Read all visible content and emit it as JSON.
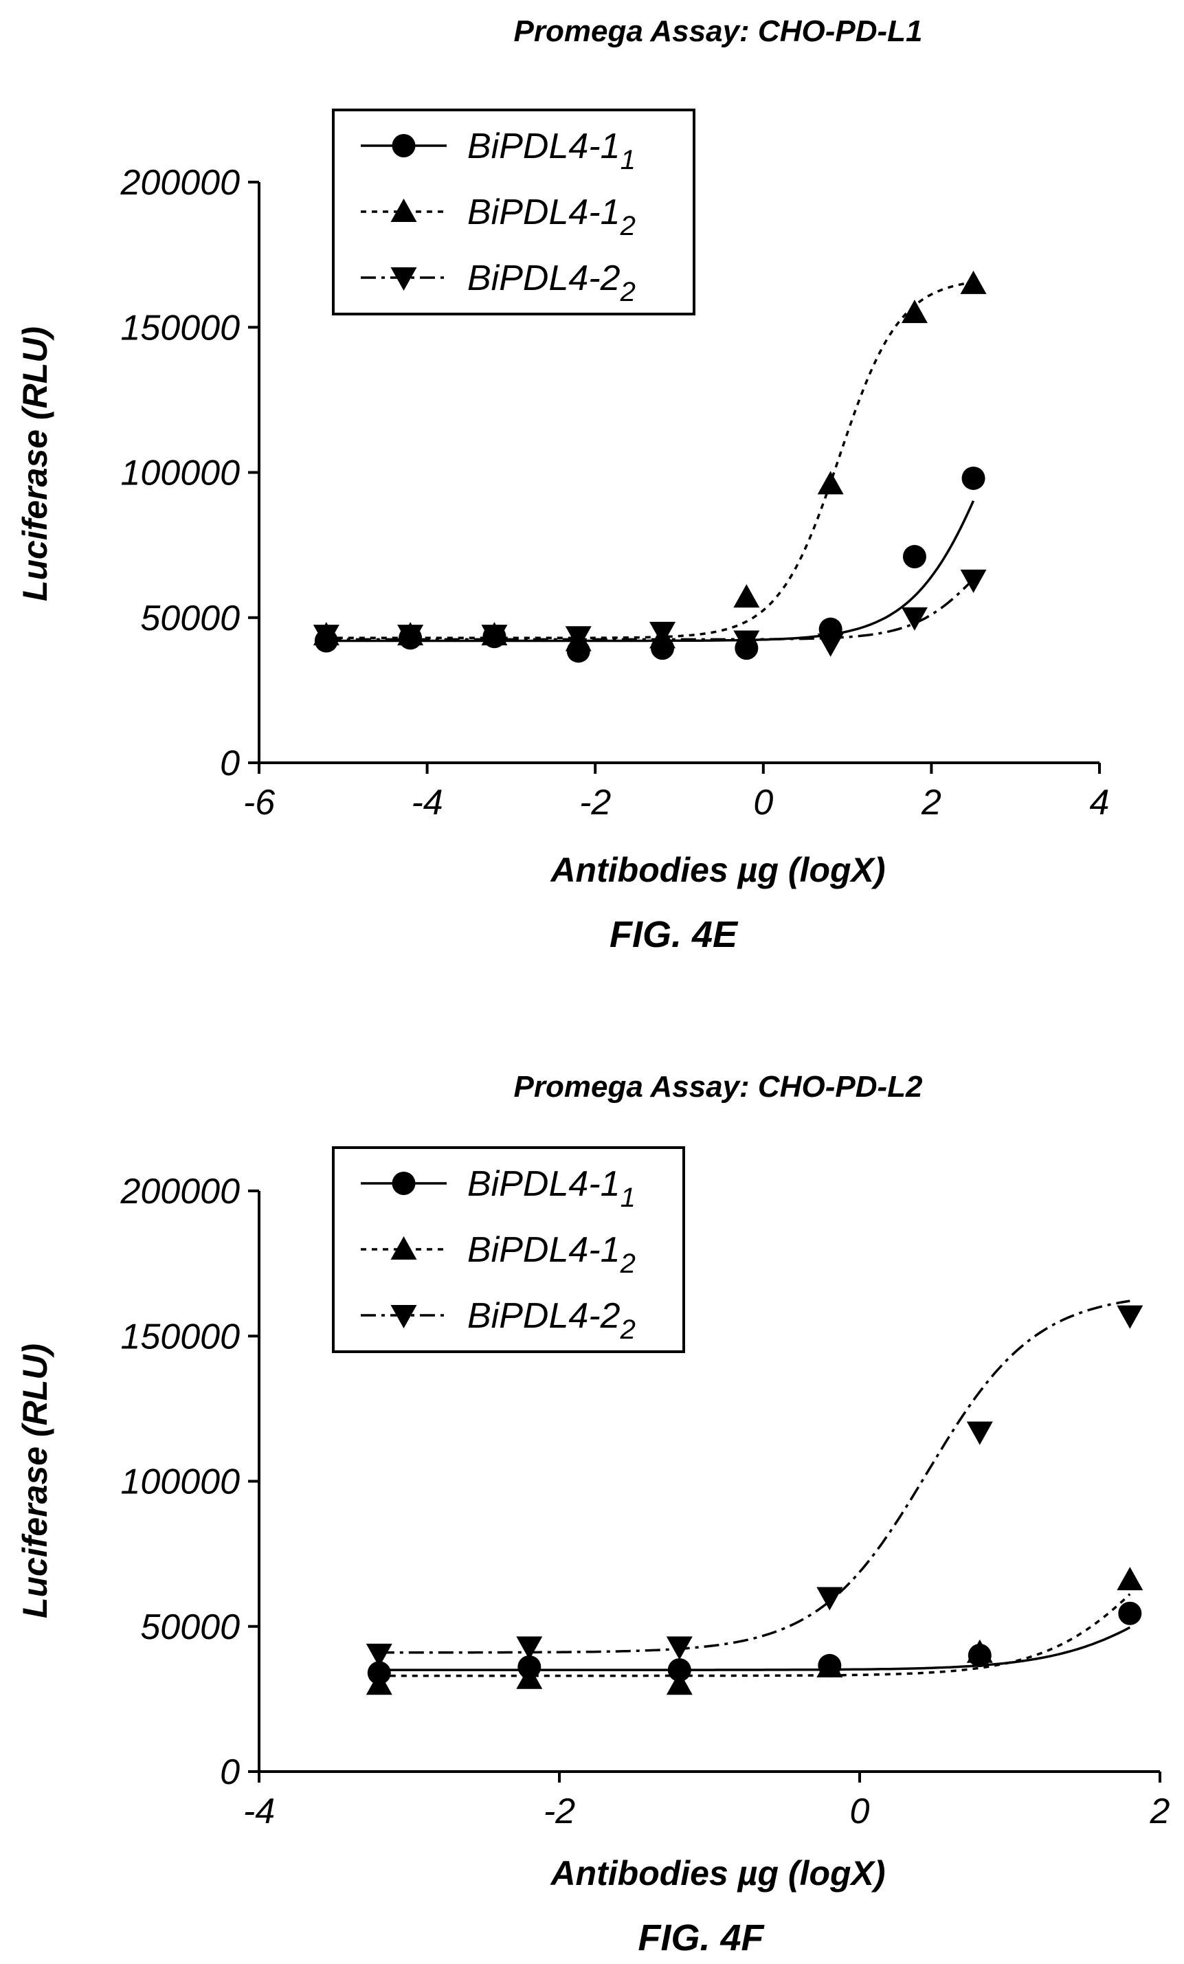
{
  "chart_data": [
    {
      "type": "scatter",
      "title": "Promega Assay: CHO-PD-L1",
      "xlabel": "Antibodies µg (logX)",
      "ylabel": "Luciferase (RLU)",
      "caption": "FIG. 4E",
      "xlim": [
        -6,
        4
      ],
      "ylim": [
        0,
        200000
      ],
      "xticks": [
        -6,
        -4,
        -2,
        0,
        2,
        4
      ],
      "xtick_labels": [
        "-6",
        "-4",
        "-2",
        "0",
        "2",
        "4"
      ],
      "yticks": [
        0,
        50000,
        100000,
        150000,
        200000
      ],
      "ytick_labels": [
        "0",
        "50000",
        "100000",
        "150000",
        "200000"
      ],
      "legend_position": "top-left",
      "series": [
        {
          "name": "BiPDL4-1",
          "sub": "1",
          "marker": "circle",
          "line": "solid",
          "x": [
            -5.2,
            -4.2,
            -3.2,
            -2.2,
            -1.2,
            -0.2,
            0.8,
            1.8,
            2.5
          ],
          "y": [
            42000,
            43000,
            43500,
            38500,
            39500,
            39500,
            46000,
            71000,
            98000
          ],
          "fit": {
            "bottom": 42000,
            "top": 180000,
            "ec50": 2.8,
            "hill": 0.9
          }
        },
        {
          "name": "BiPDL4-1",
          "sub": "2",
          "marker": "triangle-up",
          "line": "dotted",
          "x": [
            -5.2,
            -4.2,
            -3.2,
            -2.2,
            -1.2,
            -0.2,
            0.8,
            1.8,
            2.5
          ],
          "y": [
            44000,
            44000,
            44000,
            42000,
            43000,
            57000,
            96000,
            155000,
            165000
          ],
          "fit": {
            "bottom": 43000,
            "top": 167000,
            "ec50": 0.9,
            "hill": 1.2
          }
        },
        {
          "name": "BiPDL4-2",
          "sub": "2",
          "marker": "triangle-down",
          "line": "dashdot",
          "x": [
            -5.2,
            -4.2,
            -3.2,
            -2.2,
            -1.2,
            -0.2,
            0.8,
            1.8,
            2.5
          ],
          "y": [
            44000,
            44000,
            44000,
            43500,
            45000,
            42000,
            41000,
            50000,
            63000
          ],
          "fit": {
            "bottom": 42500,
            "top": 90000,
            "ec50": 2.6,
            "hill": 1.1
          }
        }
      ]
    },
    {
      "type": "scatter",
      "title": "Promega Assay: CHO-PD-L2",
      "xlabel": "Antibodies µg (logX)",
      "ylabel": "Luciferase (RLU)",
      "caption": "FIG. 4F",
      "xlim": [
        -4,
        2
      ],
      "ylim": [
        0,
        200000
      ],
      "xticks": [
        -4,
        -2,
        0,
        2
      ],
      "xtick_labels": [
        "-4",
        "-2",
        "0",
        "2"
      ],
      "yticks": [
        0,
        50000,
        100000,
        150000,
        200000
      ],
      "ytick_labels": [
        "0",
        "50000",
        "100000",
        "150000",
        "200000"
      ],
      "legend_position": "top-left",
      "series": [
        {
          "name": "BiPDL4-1",
          "sub": "1",
          "marker": "circle",
          "line": "solid",
          "x": [
            -3.2,
            -2.2,
            -1.2,
            -0.2,
            0.8,
            1.8
          ],
          "y": [
            34000,
            36000,
            35000,
            36500,
            40000,
            54500
          ],
          "fit": {
            "bottom": 35000,
            "top": 90000,
            "ec50": 2.2,
            "hill": 1.1
          }
        },
        {
          "name": "BiPDL4-1",
          "sub": "2",
          "marker": "triangle-up",
          "line": "dotted",
          "x": [
            -3.2,
            -2.2,
            -1.2,
            -0.2,
            0.8,
            1.8
          ],
          "y": [
            30000,
            32000,
            30000,
            36000,
            41000,
            66000
          ],
          "fit": {
            "bottom": 33000,
            "top": 110000,
            "ec50": 2.0,
            "hill": 1.2
          }
        },
        {
          "name": "BiPDL4-2",
          "sub": "2",
          "marker": "triangle-down",
          "line": "dashdot",
          "x": [
            -3.2,
            -2.2,
            -1.2,
            -0.2,
            0.8,
            1.8
          ],
          "y": [
            40500,
            43000,
            43000,
            60000,
            117000,
            157000
          ],
          "fit": {
            "bottom": 41000,
            "top": 165000,
            "ec50": 0.45,
            "hill": 1.2
          }
        }
      ]
    }
  ]
}
